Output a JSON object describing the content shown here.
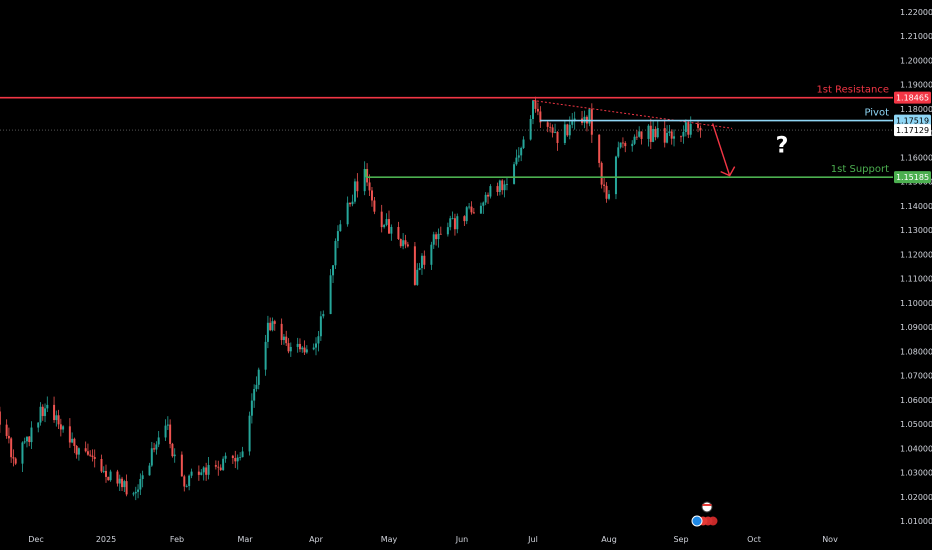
{
  "chart_data": {
    "type": "candlestick",
    "y_axis": {
      "range": [
        1.004,
        1.226
      ],
      "ticks": [
        "1.01000",
        "1.02000",
        "1.03000",
        "1.04000",
        "1.05000",
        "1.06000",
        "1.07000",
        "1.08000",
        "1.09000",
        "1.10000",
        "1.11000",
        "1.12000",
        "1.13000",
        "1.14000",
        "1.15000",
        "1.16000",
        "1.17000",
        "1.18000",
        "1.19000",
        "1.20000",
        "1.21000",
        "1.22000"
      ]
    },
    "x_axis": {
      "labels": [
        "Dec",
        "2025",
        "Feb",
        "Mar",
        "Apr",
        "May",
        "Jun",
        "Jul",
        "Aug",
        "Sep",
        "Oct",
        "Nov"
      ]
    },
    "candles_start": "2024-11-11",
    "candles_end": "2025-09-09",
    "price_path": [
      [
        "2024-11-11",
        1.0625
      ],
      [
        "2024-11-22",
        1.034
      ],
      [
        "2024-12-06",
        1.059
      ],
      [
        "2024-12-20",
        1.038
      ],
      [
        "2025-01-13",
        1.02
      ],
      [
        "2025-01-27",
        1.05
      ],
      [
        "2025-02-03",
        1.025
      ],
      [
        "2025-02-28",
        1.038
      ],
      [
        "2025-03-11",
        1.092
      ],
      [
        "2025-03-20",
        1.082
      ],
      [
        "2025-04-01",
        1.08
      ],
      [
        "2025-04-11",
        1.135
      ],
      [
        "2025-04-21",
        1.155
      ],
      [
        "2025-04-25",
        1.137
      ],
      [
        "2025-05-09",
        1.123
      ],
      [
        "2025-05-12",
        1.11
      ],
      [
        "2025-05-19",
        1.125
      ],
      [
        "2025-06-09",
        1.142
      ],
      [
        "2025-06-20",
        1.15
      ],
      [
        "2025-07-01",
        1.181
      ],
      [
        "2025-07-11",
        1.169
      ],
      [
        "2025-07-24",
        1.177
      ],
      [
        "2025-07-31",
        1.142
      ],
      [
        "2025-08-06",
        1.166
      ],
      [
        "2025-08-14",
        1.17
      ],
      [
        "2025-08-29",
        1.169
      ],
      [
        "2025-09-09",
        1.174
      ]
    ],
    "up_color": "#26a69a",
    "down_color": "#ef5350",
    "current_price": 1.17129,
    "levels": [
      {
        "name": "1st Resistance",
        "value": 1.18465,
        "color": "#f23645"
      },
      {
        "name": "Pivot",
        "value": 1.17519,
        "color": "#8fd6f5"
      },
      {
        "name": "1st Support",
        "value": 1.15185,
        "color": "#4caf50"
      }
    ],
    "tags": [
      {
        "text": "1.18465",
        "value": 1.18465,
        "bg": "#f23645",
        "fg": "#ffffff"
      },
      {
        "text": "1.17519",
        "value": 1.17519,
        "bg": "#8fd6f5",
        "fg": "#000000"
      },
      {
        "text": "1.17129",
        "value": 1.17129,
        "bg": "#ffffff",
        "fg": "#000000"
      },
      {
        "text": "1.15185",
        "value": 1.15185,
        "bg": "#4caf50",
        "fg": "#ffffff"
      }
    ],
    "trendline": {
      "start": [
        "2025-07-01",
        1.1835
      ],
      "end": [
        "2025-09-22",
        1.172
      ],
      "color": "#f23645"
    },
    "arrow": {
      "start": [
        "2025-09-14",
        1.174
      ],
      "end": [
        "2025-09-21",
        1.1525
      ],
      "color": "#f23645"
    },
    "question_mark": {
      "text": "?",
      "at": [
        "2025-10-01",
        1.162
      ]
    },
    "grid": false
  }
}
